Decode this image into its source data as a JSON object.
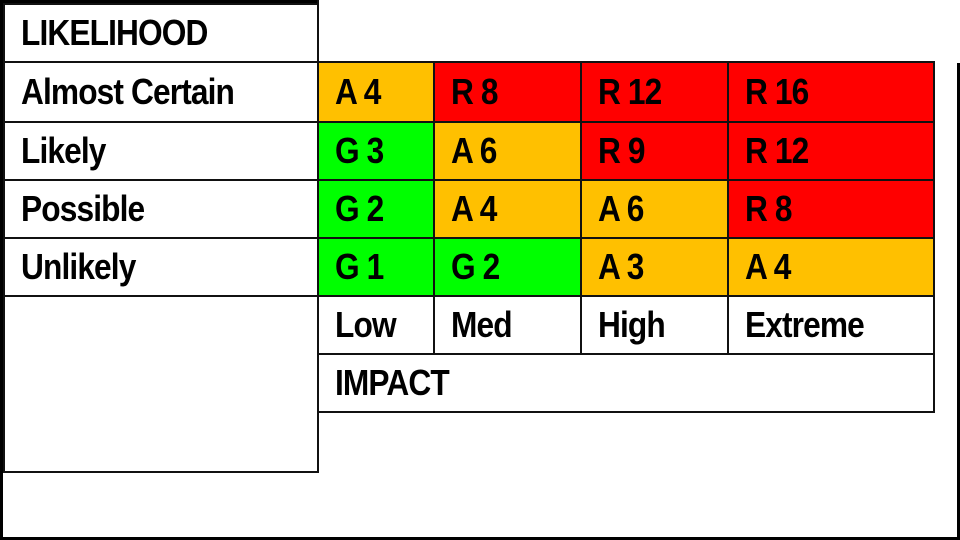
{
  "likelihood_label": "LIKELIHOOD",
  "impact_label": "IMPACT",
  "rows": [
    {
      "label": "Almost Certain",
      "cells": [
        {
          "text": "A 4",
          "level": "amber"
        },
        {
          "text": "R 8",
          "level": "red"
        },
        {
          "text": "R 12",
          "level": "red"
        },
        {
          "text": "R 16",
          "level": "red"
        }
      ]
    },
    {
      "label": "Likely",
      "cells": [
        {
          "text": "G 3",
          "level": "green"
        },
        {
          "text": "A 6",
          "level": "amber"
        },
        {
          "text": "R 9",
          "level": "red"
        },
        {
          "text": "R 12",
          "level": "red"
        }
      ]
    },
    {
      "label": "Possible",
      "cells": [
        {
          "text": "G 2",
          "level": "green"
        },
        {
          "text": "A 4",
          "level": "amber"
        },
        {
          "text": "A 6",
          "level": "amber"
        },
        {
          "text": "R 8",
          "level": "red"
        }
      ]
    },
    {
      "label": "Unlikely",
      "cells": [
        {
          "text": "G 1",
          "level": "green"
        },
        {
          "text": "G 2",
          "level": "green"
        },
        {
          "text": "A 3",
          "level": "amber"
        },
        {
          "text": "A 4",
          "level": "amber"
        }
      ]
    }
  ],
  "impact_columns": [
    "Low",
    "Med",
    "High",
    "Extreme"
  ],
  "colors": {
    "green": "#00FF00",
    "amber": "#FFC000",
    "red": "#FF0000"
  }
}
